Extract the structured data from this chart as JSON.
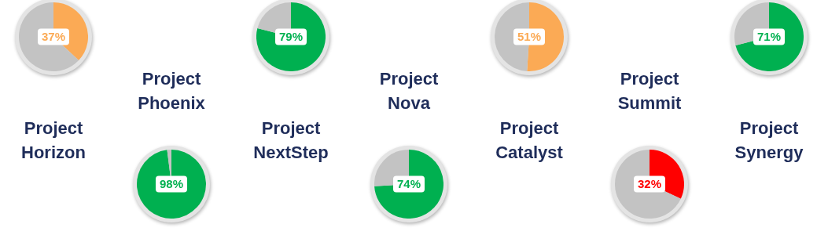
{
  "chart_data": [
    {
      "type": "pie",
      "title": "Project Horizon",
      "categories": [
        null,
        null
      ],
      "values": [
        37,
        63
      ],
      "colors": [
        "#fbaa55",
        "#c3c3c3"
      ],
      "value_labels": [
        "37%",
        null
      ]
    },
    {
      "type": "pie",
      "title": "Project Phoenix",
      "categories": [
        null,
        null
      ],
      "values": [
        98,
        2
      ],
      "colors": [
        "#00b050",
        "#c3c3c3"
      ],
      "value_labels": [
        "98%",
        null
      ]
    },
    {
      "type": "pie",
      "title": "Project NextStep",
      "categories": [
        null,
        null
      ],
      "values": [
        79,
        21
      ],
      "colors": [
        "#00b050",
        "#c3c3c3"
      ],
      "value_labels": [
        "79%",
        null
      ]
    },
    {
      "type": "pie",
      "title": "Project Nova",
      "categories": [
        null,
        null
      ],
      "values": [
        74,
        26
      ],
      "colors": [
        "#00b050",
        "#c3c3c3"
      ],
      "value_labels": [
        "74%",
        null
      ]
    },
    {
      "type": "pie",
      "title": "Project Catalyst",
      "categories": [
        null,
        null
      ],
      "values": [
        51,
        49
      ],
      "colors": [
        "#fbaa55",
        "#c3c3c3"
      ],
      "value_labels": [
        "51%",
        null
      ]
    },
    {
      "type": "pie",
      "title": "Project Summit",
      "categories": [
        null,
        null
      ],
      "values": [
        32,
        68
      ],
      "colors": [
        "#ff0000",
        "#c3c3c3"
      ],
      "value_labels": [
        "32%",
        null
      ]
    },
    {
      "type": "pie",
      "title": "Project Synergy",
      "categories": [
        null,
        null
      ],
      "values": [
        71,
        29
      ],
      "colors": [
        "#00b050",
        "#c3c3c3"
      ],
      "value_labels": [
        "71%",
        null
      ]
    }
  ]
}
